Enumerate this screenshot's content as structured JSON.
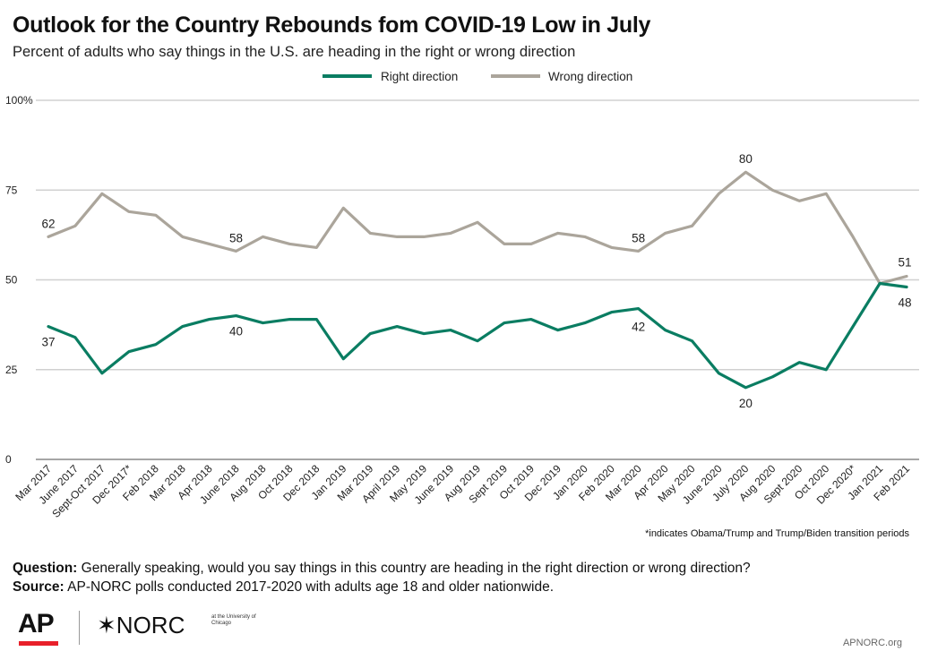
{
  "title": "Outlook for the Country Rebounds fom COVID-19 Low in July",
  "subtitle": "Percent of adults who say things in the U.S. are heading in the right or wrong direction",
  "footnote": "*indicates Obama/Trump and Trump/Biden transition periods",
  "question": {
    "label": "Question:",
    "text": " Generally speaking, would you say things in this country are heading in the right direction or wrong direction?"
  },
  "source": {
    "label": "Source:",
    "text": " AP-NORC polls conducted 2017-2020 with adults age 18 and older nationwide."
  },
  "logos": {
    "ap": "AP",
    "norc": "NORC",
    "norc_sub": "at the University of Chicago",
    "ap_bar_color": "#e8202a"
  },
  "website": "APNORC.org",
  "chart_data": {
    "type": "line",
    "title": "Outlook for the Country Rebounds fom COVID-19 Low in July",
    "subtitle": "Percent of adults who say things in the U.S. are heading in the right or wrong direction",
    "categories": [
      "Mar 2017",
      "June 2017",
      "Sept-Oct 2017",
      "Dec 2017*",
      "Feb 2018",
      "Mar 2018",
      "Apr 2018",
      "June 2018",
      "Aug 2018",
      "Oct 2018",
      "Dec 2018",
      "Jan 2019",
      "Mar 2019",
      "April 2019",
      "May 2019",
      "June 2019",
      "Aug 2019",
      "Sept 2019",
      "Oct 2019",
      "Dec 2019",
      "Jan 2020",
      "Feb 2020",
      "Mar 2020",
      "Apr 2020",
      "May 2020",
      "June 2020",
      "July 2020",
      "Aug 2020",
      "Sept 2020",
      "Oct 2020",
      "Dec 2020*",
      "Jan 2021",
      "Feb 2021"
    ],
    "series": [
      {
        "name": "Right direction",
        "color": "#0a7d62",
        "values": [
          37,
          34,
          24,
          30,
          32,
          37,
          39,
          40,
          38,
          39,
          39,
          28,
          35,
          37,
          35,
          36,
          33,
          38,
          39,
          36,
          38,
          41,
          42,
          36,
          33,
          24,
          20,
          23,
          27,
          25,
          37,
          49,
          48
        ]
      },
      {
        "name": "Wrong direction",
        "color": "#aba59b",
        "values": [
          62,
          65,
          74,
          69,
          68,
          62,
          60,
          58,
          62,
          60,
          59,
          70,
          63,
          62,
          62,
          63,
          66,
          60,
          60,
          63,
          62,
          59,
          58,
          63,
          65,
          74,
          80,
          75,
          72,
          74,
          62,
          49,
          51
        ]
      }
    ],
    "yticks": [
      "0",
      "25",
      "50",
      "75",
      "100%"
    ],
    "ylim": [
      0,
      100
    ],
    "grid": true,
    "legend_position": "top-center",
    "data_labels": [
      {
        "series": 1,
        "index": 0,
        "text": "62"
      },
      {
        "series": 1,
        "index": 7,
        "text": "58"
      },
      {
        "series": 1,
        "index": 22,
        "text": "58"
      },
      {
        "series": 1,
        "index": 26,
        "text": "80"
      },
      {
        "series": 1,
        "index": 32,
        "text": "51"
      },
      {
        "series": 0,
        "index": 0,
        "text": "37"
      },
      {
        "series": 0,
        "index": 7,
        "text": "40"
      },
      {
        "series": 0,
        "index": 22,
        "text": "42"
      },
      {
        "series": 0,
        "index": 26,
        "text": "20"
      },
      {
        "series": 0,
        "index": 32,
        "text": "48"
      }
    ]
  }
}
